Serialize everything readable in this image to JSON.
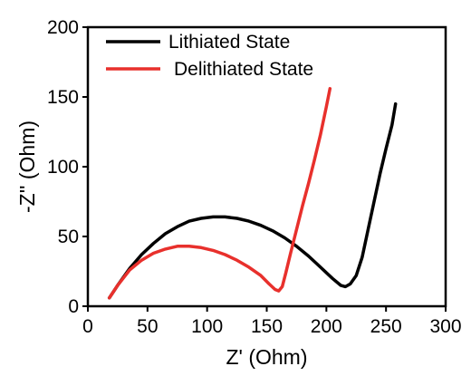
{
  "chart_data": {
    "type": "line",
    "xlabel": "Z' (Ohm)",
    "ylabel": "-Z'' (Ohm)",
    "xlim": [
      0,
      300
    ],
    "ylim": [
      0,
      200
    ],
    "xticks": [
      0,
      50,
      100,
      150,
      200,
      250,
      300
    ],
    "yticks": [
      0,
      50,
      100,
      150,
      200
    ],
    "xtick_labels": [
      "0",
      "50",
      "100",
      "150",
      "200",
      "250",
      "300"
    ],
    "ytick_labels": [
      "0",
      "50",
      "100",
      "150",
      "200"
    ],
    "grid": false,
    "legend_position": "top-left",
    "series": [
      {
        "name": "Lithiated State",
        "color": "#000000",
        "points": [
          [
            18,
            6
          ],
          [
            25,
            15
          ],
          [
            35,
            27
          ],
          [
            45,
            37
          ],
          [
            55,
            45
          ],
          [
            65,
            52
          ],
          [
            75,
            57
          ],
          [
            85,
            61
          ],
          [
            95,
            63
          ],
          [
            105,
            64
          ],
          [
            115,
            64
          ],
          [
            125,
            63
          ],
          [
            135,
            61
          ],
          [
            145,
            58
          ],
          [
            155,
            54
          ],
          [
            165,
            49
          ],
          [
            175,
            43
          ],
          [
            185,
            36
          ],
          [
            195,
            28
          ],
          [
            205,
            20
          ],
          [
            212,
            15
          ],
          [
            216,
            14
          ],
          [
            220,
            16
          ],
          [
            225,
            22
          ],
          [
            230,
            35
          ],
          [
            235,
            55
          ],
          [
            240,
            75
          ],
          [
            245,
            95
          ],
          [
            250,
            113
          ],
          [
            255,
            130
          ],
          [
            258,
            145
          ]
        ]
      },
      {
        "name": "Delithiated State",
        "color": "#e8302c",
        "points": [
          [
            18,
            6
          ],
          [
            25,
            15
          ],
          [
            35,
            26
          ],
          [
            45,
            33
          ],
          [
            55,
            38
          ],
          [
            65,
            41
          ],
          [
            75,
            43
          ],
          [
            85,
            43
          ],
          [
            95,
            42
          ],
          [
            105,
            40
          ],
          [
            115,
            37
          ],
          [
            125,
            33
          ],
          [
            135,
            28
          ],
          [
            145,
            22
          ],
          [
            152,
            16
          ],
          [
            157,
            12
          ],
          [
            160,
            11
          ],
          [
            163,
            14
          ],
          [
            166,
            24
          ],
          [
            170,
            38
          ],
          [
            175,
            55
          ],
          [
            180,
            72
          ],
          [
            185,
            88
          ],
          [
            190,
            105
          ],
          [
            195,
            123
          ],
          [
            200,
            143
          ],
          [
            203,
            156
          ]
        ]
      }
    ]
  }
}
